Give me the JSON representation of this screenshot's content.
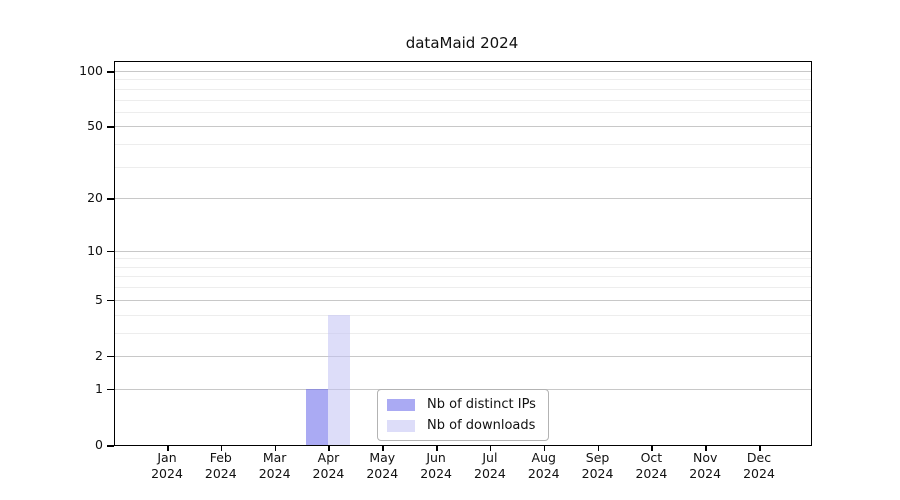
{
  "chart_data": {
    "type": "bar",
    "title": "dataMaid 2024",
    "xlabel": "",
    "ylabel": "",
    "ylim": [
      0,
      100
    ],
    "y_scale": "log10(value+1)",
    "grid": "horizontal",
    "y_tick_labels": [
      100,
      50,
      20,
      10,
      5,
      2,
      1,
      0
    ],
    "y_minor_gridlines": [
      90,
      80,
      70,
      60,
      40,
      30,
      9,
      8,
      7,
      6,
      4,
      3
    ],
    "categories": [
      {
        "month": "Jan",
        "year": "2024"
      },
      {
        "month": "Feb",
        "year": "2024"
      },
      {
        "month": "Mar",
        "year": "2024"
      },
      {
        "month": "Apr",
        "year": "2024"
      },
      {
        "month": "May",
        "year": "2024"
      },
      {
        "month": "Jun",
        "year": "2024"
      },
      {
        "month": "Jul",
        "year": "2024"
      },
      {
        "month": "Aug",
        "year": "2024"
      },
      {
        "month": "Sep",
        "year": "2024"
      },
      {
        "month": "Oct",
        "year": "2024"
      },
      {
        "month": "Nov",
        "year": "2024"
      },
      {
        "month": "Dec",
        "year": "2024"
      }
    ],
    "series": [
      {
        "name": "Nb of distinct IPs",
        "color": "rgba(100, 100, 233, 0.55)",
        "values": [
          0,
          0,
          0,
          1,
          0,
          0,
          0,
          0,
          0,
          0,
          0,
          0
        ]
      },
      {
        "name": "Nb of downloads",
        "color": "rgba(193, 193, 244, 0.55)",
        "values": [
          0,
          0,
          0,
          4,
          0,
          0,
          0,
          0,
          0,
          0,
          0,
          0
        ]
      }
    ],
    "legend": {
      "position": "inside-bottom-center",
      "entries": [
        "Nb of distinct IPs",
        "Nb of downloads"
      ]
    },
    "colors": {
      "grid_major": "#c8c8c8",
      "grid_minor": "#ededed",
      "axis": "#000000",
      "legend_border": "#b3b3b3"
    }
  }
}
